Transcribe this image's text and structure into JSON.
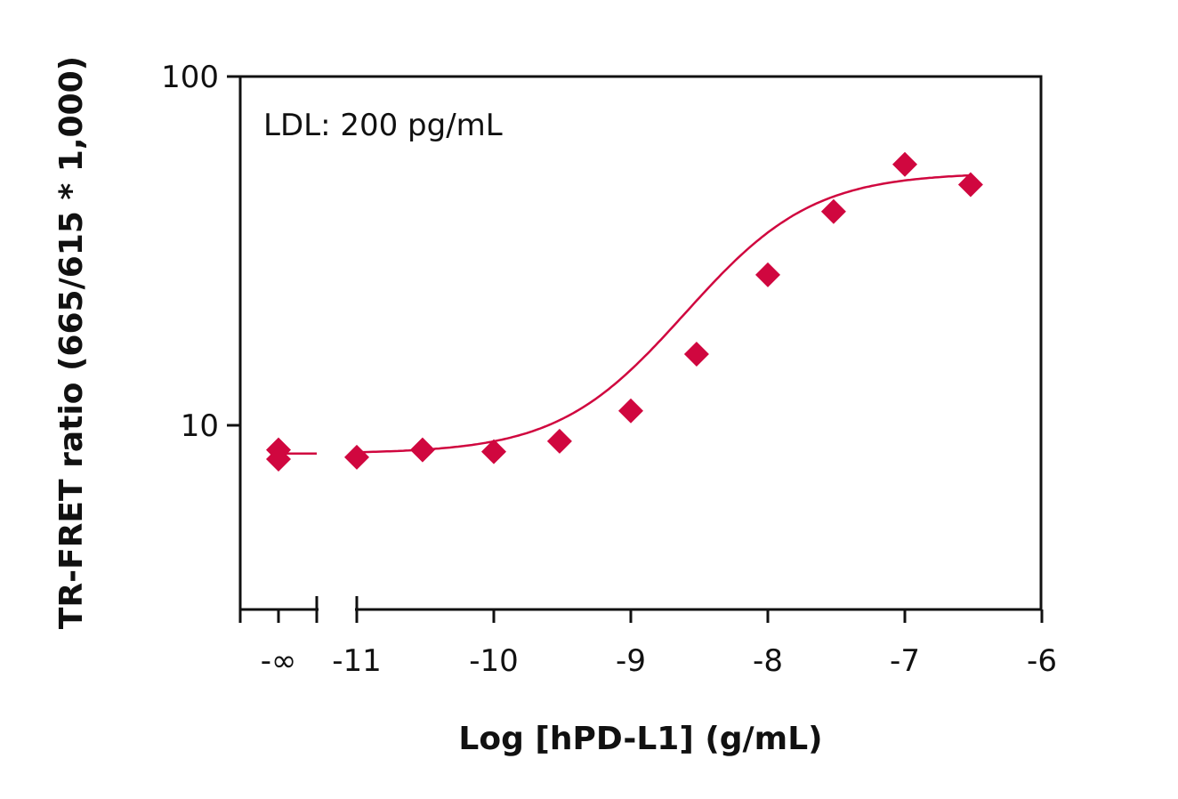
{
  "chart_data": {
    "type": "scatter",
    "title": "",
    "xlabel": "Log [hPD-L1] (g/mL)",
    "ylabel": "TR-FRET ratio (665/615 * 1,000)",
    "x_scale": "log10 concentration (broken axis with -∞ control)",
    "y_scale": "log",
    "ylim": [
      4,
      100
    ],
    "xlim": [
      -11.3,
      -6
    ],
    "x_tick_labels": [
      "-∞",
      "-11",
      "-10",
      "-9",
      "-8",
      "-7",
      "-6"
    ],
    "y_tick_labels": [
      "100",
      "10"
    ],
    "y_ticks": [
      100,
      10
    ],
    "annotation": "LDL: 200 pg/mL",
    "marker_color": "#D0073F",
    "curve_color": "#D0073F",
    "control_points": [
      {
        "x": "-∞",
        "y": 8.5
      },
      {
        "x": "-∞",
        "y": 8.0
      }
    ],
    "series": [
      {
        "points": [
          {
            "x": -11.0,
            "y": 8.1
          },
          {
            "x": -10.52,
            "y": 8.5
          },
          {
            "x": -10.0,
            "y": 8.4
          },
          {
            "x": -9.52,
            "y": 9.0
          },
          {
            "x": -9.0,
            "y": 11.0
          },
          {
            "x": -8.52,
            "y": 16.0
          },
          {
            "x": -8.0,
            "y": 27.0
          },
          {
            "x": -7.52,
            "y": 41.0
          },
          {
            "x": -7.0,
            "y": 56.0
          },
          {
            "x": -6.52,
            "y": 49.0
          }
        ]
      }
    ],
    "fit": {
      "bottom": 8.3,
      "top": 53,
      "logEC50": -8.2,
      "hill": 1.0
    }
  }
}
